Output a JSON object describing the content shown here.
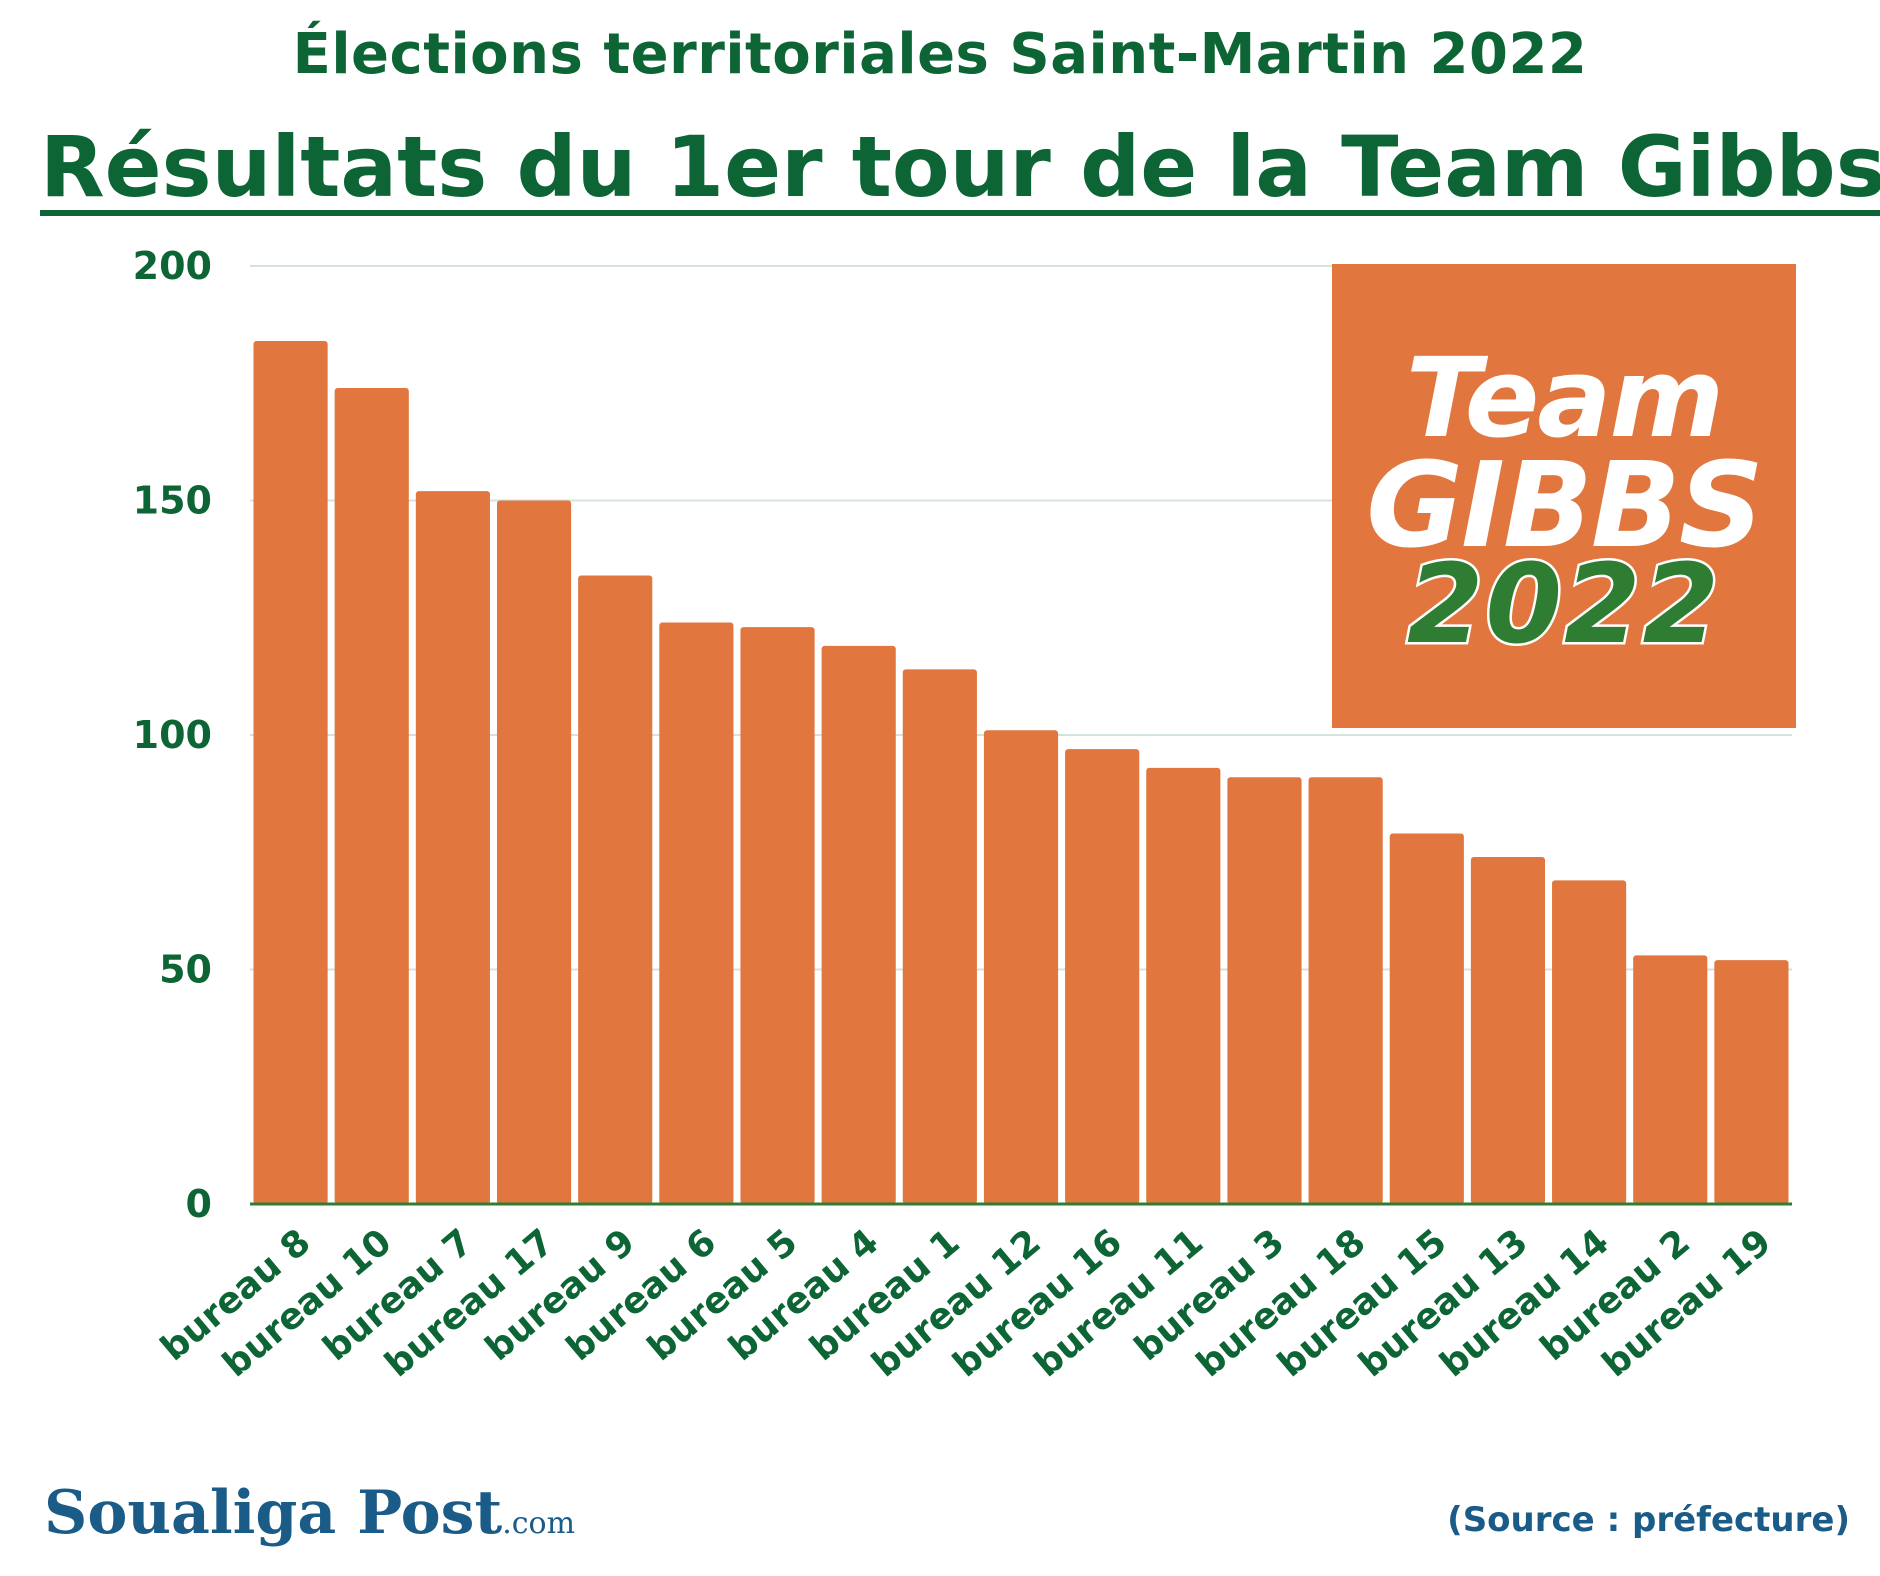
{
  "header": {
    "title": "Élections territoriales Saint-Martin 2022",
    "subtitle": "Résultats du 1er tour de la Team Gibbs"
  },
  "logo": {
    "line1": "Team",
    "line2": "GIBBS",
    "line3": "2022"
  },
  "footer": {
    "brand": "Soualiga Post",
    "brand_suffix": ".com",
    "source": "(Source : préfecture)"
  },
  "colors": {
    "bar": "#e1763e",
    "text": "#0d6535",
    "grid": "#d5e3dc",
    "axis": "#2e7d32",
    "footer": "#1a5c87"
  },
  "chart_data": {
    "type": "bar",
    "title": "Résultats du 1er tour de la Team Gibbs",
    "xlabel": "",
    "ylabel": "",
    "ylim": [
      0,
      200
    ],
    "yticks": [
      0,
      50,
      100,
      150,
      200
    ],
    "grid": true,
    "categories": [
      "bureau 8",
      "bureau 10",
      "bureau 7",
      "bureau 17",
      "bureau 9",
      "bureau 6",
      "bureau 5",
      "bureau 4",
      "bureau 1",
      "bureau 12",
      "bureau 16",
      "bureau 11",
      "bureau 3",
      "bureau 18",
      "bureau 15",
      "bureau 13",
      "bureau 14",
      "bureau 2",
      "bureau 19"
    ],
    "values": [
      184,
      174,
      152,
      150,
      134,
      124,
      123,
      119,
      114,
      101,
      97,
      93,
      91,
      91,
      79,
      74,
      69,
      53,
      52
    ]
  }
}
